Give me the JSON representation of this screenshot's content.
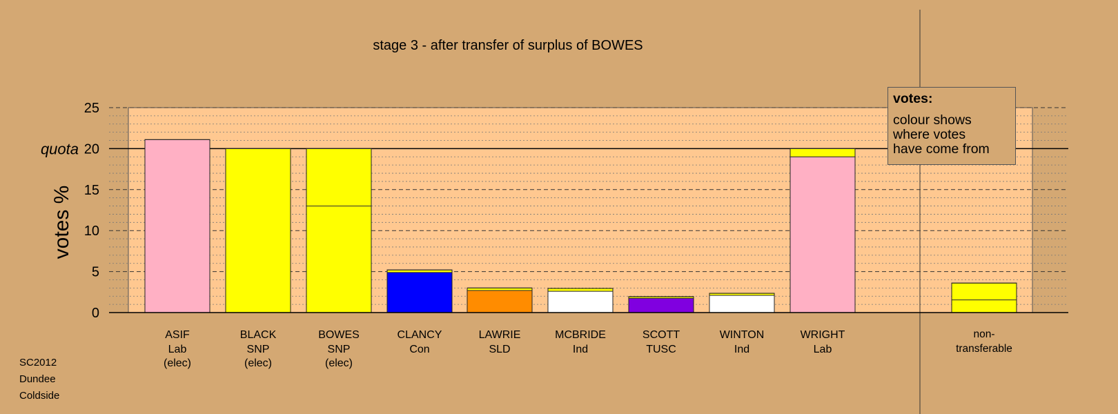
{
  "chart_data": {
    "type": "bar",
    "stacked": true,
    "title": "stage 3 - after transfer of surplus of BOWES",
    "ylabel": "votes %",
    "quota_label": "quota",
    "quota": 20,
    "ylim": [
      0,
      25
    ],
    "yticks": [
      "0",
      "5",
      "10",
      "15",
      "20",
      "25"
    ],
    "grid": true,
    "colors": {
      "Lab": "#ffb0c4",
      "SNP": "#ffff00",
      "Con": "#0000ff",
      "SLD": "#ff8c00",
      "Ind": "#ffffff",
      "TUSC": "#8000e0"
    },
    "categories": [
      {
        "name": "ASIF",
        "party": "Lab",
        "note": "(elec)",
        "segments": [
          {
            "from": "Lab",
            "value": 21.1
          }
        ]
      },
      {
        "name": "BLACK",
        "party": "SNP",
        "note": "(elec)",
        "segments": [
          {
            "from": "SNP",
            "value": 20.0
          }
        ]
      },
      {
        "name": "BOWES",
        "party": "SNP",
        "note": "(elec)",
        "segments": [
          {
            "from": "SNP",
            "value": 13.0
          },
          {
            "from": "SNP",
            "value": 7.0
          }
        ]
      },
      {
        "name": "CLANCY",
        "party": "Con",
        "note": "",
        "segments": [
          {
            "from": "Con",
            "value": 4.9
          },
          {
            "from": "SNP",
            "value": 0.3
          }
        ]
      },
      {
        "name": "LAWRIE",
        "party": "SLD",
        "note": "",
        "segments": [
          {
            "from": "SLD",
            "value": 2.7
          },
          {
            "from": "SNP",
            "value": 0.3
          }
        ]
      },
      {
        "name": "MCBRIDE",
        "party": "Ind",
        "note": "",
        "segments": [
          {
            "from": "Ind",
            "value": 2.6
          },
          {
            "from": "SNP",
            "value": 0.35
          }
        ]
      },
      {
        "name": "SCOTT",
        "party": "TUSC",
        "note": "",
        "segments": [
          {
            "from": "TUSC",
            "value": 1.75
          },
          {
            "from": "SNP",
            "value": 0.2
          }
        ]
      },
      {
        "name": "WINTON",
        "party": "Ind",
        "note": "",
        "segments": [
          {
            "from": "Ind",
            "value": 2.1
          },
          {
            "from": "SNP",
            "value": 0.25
          }
        ]
      },
      {
        "name": "WRIGHT",
        "party": "Lab",
        "note": "",
        "segments": [
          {
            "from": "Lab",
            "value": 19.0
          },
          {
            "from": "SNP",
            "value": 1.0
          }
        ]
      }
    ],
    "nontransferable": {
      "label_line1": "non-",
      "label_line2": "transferable",
      "segments": [
        {
          "from": "SNP",
          "value": 1.55
        },
        {
          "from": "SNP",
          "value": 2.05
        }
      ]
    }
  },
  "legend": {
    "title": "votes:",
    "lines": [
      "colour shows",
      "where votes",
      "have come from"
    ]
  },
  "footer": {
    "lines": [
      "SC2012",
      "Dundee",
      "Coldside"
    ]
  }
}
